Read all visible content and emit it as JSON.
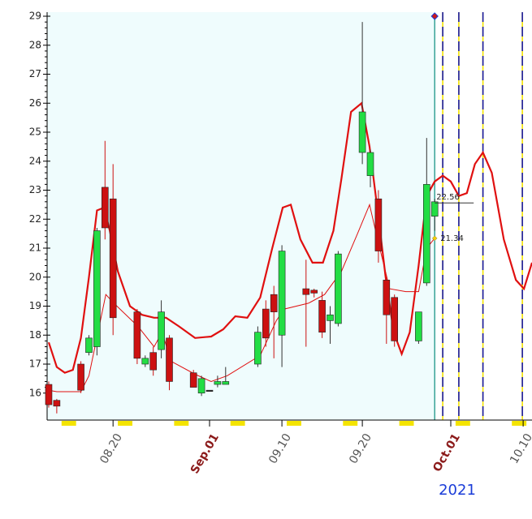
{
  "chart_data": {
    "type": "candlestick",
    "xlim": [
      11.8,
      72.1
    ],
    "xticks": [
      {
        "value": 20,
        "label": "08.20"
      },
      {
        "value": 32,
        "label": "Sep.01"
      },
      {
        "value": 41,
        "label": "09.10"
      },
      {
        "value": 51,
        "label": "09.20"
      },
      {
        "value": 62,
        "label": "Oct.01"
      },
      {
        "value": 71,
        "label": "10.10"
      }
    ],
    "highlight_ticks": [
      1,
      4
    ],
    "ylim": [
      15.07,
      29.14
    ],
    "yticks": [
      16,
      17,
      18,
      19,
      20,
      21,
      22,
      23,
      24,
      25,
      26,
      27,
      28,
      29
    ],
    "year": "2021",
    "up_color": "#22dd44",
    "down_color": "#cc1111",
    "candles": {
      "x": [
        12,
        13,
        16,
        17,
        18,
        19,
        20,
        23,
        24,
        25,
        26,
        27,
        30,
        31,
        32,
        33,
        34,
        38,
        39,
        40,
        41,
        44,
        45,
        46,
        47,
        48,
        51,
        52,
        53,
        54,
        55,
        58,
        59,
        60
      ],
      "open": [
        16.3,
        15.75,
        17.0,
        17.4,
        17.6,
        23.1,
        22.7,
        18.8,
        17.0,
        17.4,
        17.5,
        17.9,
        16.7,
        16.0,
        16.1,
        16.3,
        16.3,
        17.0,
        18.9,
        19.4,
        18.0,
        19.6,
        19.55,
        19.2,
        18.5,
        18.4,
        24.3,
        23.5,
        22.7,
        19.9,
        19.3,
        17.8,
        19.8,
        22.1
      ],
      "high": [
        16.4,
        15.8,
        17.1,
        18.0,
        21.7,
        24.7,
        23.9,
        18.9,
        17.3,
        17.6,
        19.2,
        18.0,
        16.8,
        16.6,
        16.1,
        16.6,
        16.9,
        18.3,
        19.2,
        19.7,
        21.1,
        20.6,
        19.6,
        19.5,
        19.0,
        20.9,
        28.8,
        24.4,
        23.0,
        20.0,
        19.4,
        18.8,
        24.8,
        22.7
      ],
      "low": [
        15.5,
        15.3,
        16.0,
        17.3,
        17.3,
        21.3,
        18.0,
        17.0,
        16.9,
        16.6,
        17.2,
        16.1,
        16.2,
        15.9,
        16.1,
        16.2,
        16.3,
        16.9,
        17.6,
        17.2,
        16.9,
        17.6,
        19.3,
        17.9,
        17.7,
        18.3,
        23.9,
        23.1,
        20.5,
        17.7,
        17.6,
        17.7,
        19.7,
        21.6
      ],
      "close": [
        15.6,
        15.55,
        16.1,
        17.9,
        21.6,
        21.7,
        18.6,
        17.2,
        17.2,
        16.8,
        18.8,
        16.4,
        16.2,
        16.5,
        16.1,
        16.4,
        16.4,
        18.1,
        17.9,
        18.8,
        20.9,
        19.4,
        19.45,
        18.1,
        18.7,
        20.8,
        25.7,
        24.3,
        20.9,
        18.7,
        17.8,
        18.8,
        23.2,
        22.6
      ]
    },
    "lines": [
      {
        "color": "#e01010",
        "width": 2.2,
        "x": [
          12,
          13,
          14,
          15,
          16,
          17,
          18,
          18.9,
          19.6,
          20.6,
          22.1,
          23.6,
          25.1,
          26.6,
          28.2,
          30.2,
          32.2,
          33.7,
          35.2,
          36.7,
          38.3,
          39.8,
          41.1,
          42.1,
          43.3,
          44.8,
          46.1,
          47.4,
          48.4,
          49.6,
          50.9,
          51.9,
          52.9,
          53.9,
          54.9,
          55.9,
          56.9,
          58,
          59,
          60,
          61,
          62,
          63,
          64,
          65,
          66,
          67.1,
          68.6,
          70.1,
          71.1,
          72.1
        ],
        "values": [
          17.75,
          16.9,
          16.7,
          16.8,
          17.9,
          20.0,
          22.3,
          22.4,
          21.6,
          20.2,
          19.0,
          18.7,
          18.6,
          18.6,
          18.3,
          17.9,
          17.95,
          18.2,
          18.65,
          18.6,
          19.3,
          21.0,
          22.4,
          22.5,
          21.3,
          20.5,
          20.5,
          21.6,
          23.4,
          25.7,
          26.0,
          24.5,
          22.3,
          20.0,
          18.1,
          17.35,
          18.1,
          20.4,
          22.8,
          23.3,
          23.5,
          23.3,
          22.8,
          22.9,
          23.9,
          24.3,
          23.6,
          21.3,
          19.9,
          19.6,
          20.5
        ]
      },
      {
        "color": "#e01010",
        "width": 1,
        "x": [
          12,
          13,
          16,
          17,
          19.1,
          20.1,
          23.1,
          25.1,
          26.1,
          27.2,
          30.2,
          32.2,
          34.2,
          38.3,
          40.3,
          41.3,
          44.3,
          46.3,
          48.4,
          50.4,
          51.9,
          52.9,
          54.4,
          56.4,
          58,
          59,
          60
        ],
        "values": [
          16.1,
          16.05,
          16.05,
          16.6,
          19.4,
          19.1,
          18.3,
          17.6,
          18.1,
          17.1,
          16.65,
          16.4,
          16.6,
          17.3,
          18.5,
          18.9,
          19.1,
          19.4,
          20.2,
          21.5,
          22.5,
          21.3,
          19.6,
          19.5,
          19.5,
          21.0,
          21.34
        ]
      }
    ],
    "levels": [
      {
        "x": 60,
        "value": 22.56
      },
      {
        "x": 60,
        "value": 21.34
      }
    ],
    "current_x": 60,
    "projection_x": [
      61,
      63,
      66,
      70.9
    ]
  }
}
